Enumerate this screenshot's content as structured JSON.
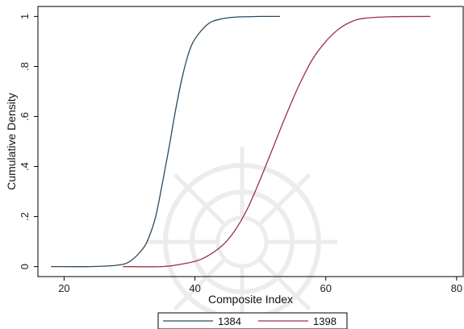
{
  "chart_data": {
    "type": "line",
    "title": "",
    "xlabel": "Composite Index",
    "ylabel": "Cumulative Density",
    "xlim": [
      16,
      81
    ],
    "ylim": [
      -0.04,
      1.04
    ],
    "xticks": [
      20,
      40,
      60,
      80
    ],
    "xtick_labels": [
      "20",
      "40",
      "60",
      "80"
    ],
    "yticks": [
      0,
      0.2,
      0.4,
      0.6,
      0.8,
      1
    ],
    "ytick_labels": [
      "0",
      ".2",
      ".4",
      ".6",
      ".8",
      "1"
    ],
    "grid": false,
    "legend_position": "bottom",
    "series": [
      {
        "name": "1384",
        "color": "#2a4a5e",
        "x": [
          18,
          24,
          28,
          30,
          32,
          33,
          34,
          35,
          36,
          37,
          38,
          39,
          40,
          42,
          44,
          46,
          50,
          53
        ],
        "y": [
          0,
          0,
          0.005,
          0.02,
          0.07,
          0.12,
          0.2,
          0.33,
          0.47,
          0.62,
          0.75,
          0.85,
          0.91,
          0.97,
          0.99,
          0.997,
          1,
          1
        ]
      },
      {
        "name": "1398",
        "color": "#9b3146",
        "x": [
          29,
          35,
          38,
          41,
          44,
          46,
          48,
          50,
          52,
          54,
          56,
          58,
          60,
          62,
          64,
          66,
          70,
          76
        ],
        "y": [
          0,
          0,
          0.01,
          0.03,
          0.08,
          0.14,
          0.23,
          0.35,
          0.48,
          0.61,
          0.73,
          0.83,
          0.9,
          0.95,
          0.98,
          0.993,
          0.999,
          1
        ]
      }
    ]
  }
}
